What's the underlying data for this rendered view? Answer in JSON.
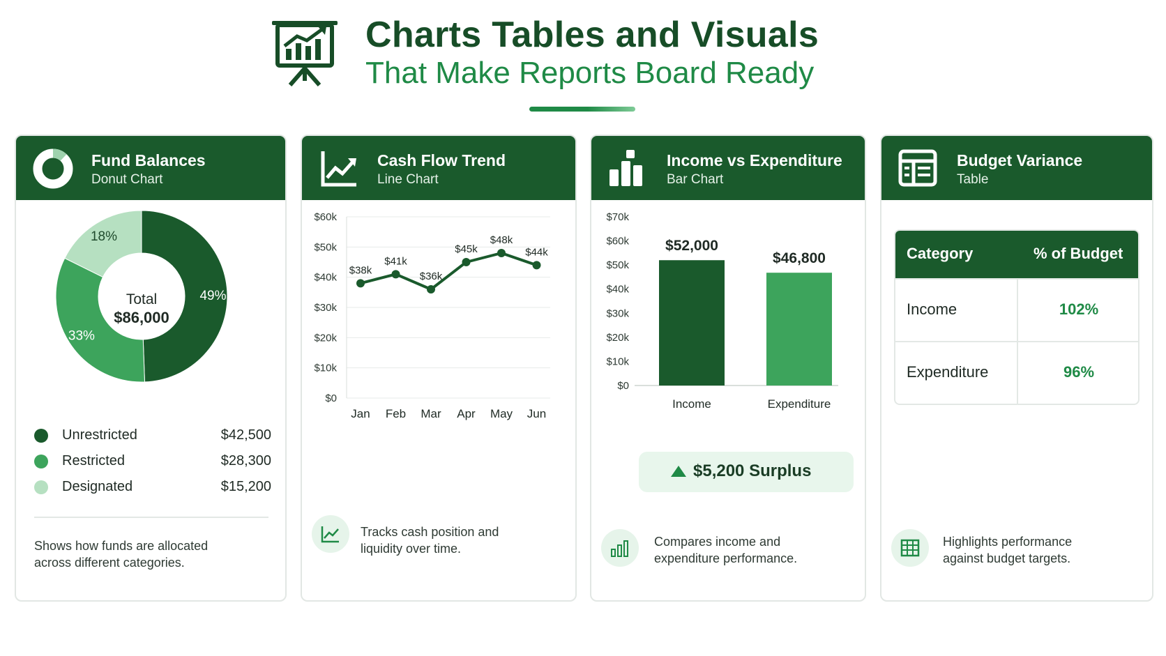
{
  "header": {
    "title_line1": "Charts Tables and Visuals",
    "title_line2": "That Make Reports Board Ready",
    "icon": "presentation-chart-icon"
  },
  "colors": {
    "dark_green": "#1a5a2c",
    "mid_green": "#3da45c",
    "light_green": "#b6e0c1",
    "accent_green": "#1f8a46"
  },
  "cards": {
    "fund": {
      "title": "Fund Balances",
      "subtitle": "Donut Chart",
      "icon": "donut-icon",
      "center_label": "Total",
      "center_value": "$86,000",
      "legend": [
        {
          "label": "Unrestricted",
          "value": "$42,500",
          "color": "#1a5a2c"
        },
        {
          "label": "Restricted",
          "value": "$28,300",
          "color": "#3da45c"
        },
        {
          "label": "Designated",
          "value": "$15,200",
          "color": "#b6e0c1"
        }
      ],
      "description": "Shows how funds are allocated across different categories."
    },
    "cash": {
      "title": "Cash Flow Trend",
      "subtitle": "Line Chart",
      "icon": "line-chart-icon",
      "description": "Tracks cash position and liquidity over time.",
      "desc_icon": "trend-icon"
    },
    "income": {
      "title": "Income vs Expenditure",
      "subtitle": "Bar Chart",
      "icon": "bar-chart-icon",
      "surplus": "$5,200 Surplus",
      "description": "Compares income and expenditure performance.",
      "desc_icon": "bar-chart-icon"
    },
    "budget": {
      "title": "Budget Variance",
      "subtitle": "Table",
      "icon": "table-icon",
      "columns": [
        "Category",
        "% of Budget"
      ],
      "rows": [
        {
          "category": "Income",
          "pct": "102%"
        },
        {
          "category": "Expenditure",
          "pct": "96%"
        }
      ],
      "description": "Highlights performance against budget targets.",
      "desc_icon": "grid-icon"
    }
  },
  "chart_data": [
    {
      "type": "pie",
      "title": "Fund Balances",
      "categories": [
        "Unrestricted",
        "Restricted",
        "Designated"
      ],
      "values": [
        42500,
        28300,
        15200
      ],
      "percent_labels": [
        "49%",
        "33%",
        "18%"
      ],
      "colors": [
        "#1a5a2c",
        "#3da45c",
        "#b6e0c1"
      ]
    },
    {
      "type": "line",
      "title": "Cash Flow Trend",
      "categories": [
        "Jan",
        "Feb",
        "Mar",
        "Apr",
        "May",
        "Jun"
      ],
      "values": [
        38,
        41,
        36,
        45,
        48,
        44
      ],
      "data_labels": [
        "$38k",
        "$41k",
        "$36k",
        "$45k",
        "$48k",
        "$44k"
      ],
      "y_ticks": [
        "$0",
        "$10k",
        "$20k",
        "$30k",
        "$40k",
        "$50k",
        "$60k"
      ],
      "ylim": [
        0,
        60
      ],
      "grid": true
    },
    {
      "type": "bar",
      "title": "Income vs Expenditure",
      "categories": [
        "Income",
        "Expenditure"
      ],
      "values": [
        52000,
        46800
      ],
      "data_labels": [
        "$52,000",
        "$46,800"
      ],
      "y_ticks": [
        "$0",
        "$10k",
        "$20k",
        "$30k",
        "$40k",
        "$50k",
        "$60k",
        "$70k"
      ],
      "ylim": [
        0,
        70000
      ],
      "colors": [
        "#1a5a2c",
        "#3da45c"
      ],
      "grid": false
    }
  ]
}
